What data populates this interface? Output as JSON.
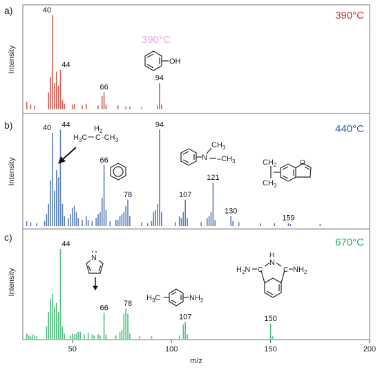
{
  "chart_data": {
    "type": "bar",
    "xlabel": "m/z",
    "xlim": [
      25,
      200
    ],
    "xticks": [
      50,
      100,
      150,
      200
    ],
    "panels": [
      {
        "label": "a)",
        "temperature": "390°C",
        "color": "#c0392b",
        "ylabel": "Intensity",
        "ghost_label": "390°C",
        "peaks": [
          {
            "x": 27,
            "y": 8
          },
          {
            "x": 29,
            "y": 5
          },
          {
            "x": 31,
            "y": 4
          },
          {
            "x": 38,
            "y": 18
          },
          {
            "x": 39,
            "y": 34
          },
          {
            "x": 40,
            "y": 100
          },
          {
            "x": 41,
            "y": 28
          },
          {
            "x": 42,
            "y": 40
          },
          {
            "x": 43,
            "y": 25
          },
          {
            "x": 44,
            "y": 42
          },
          {
            "x": 45,
            "y": 10
          },
          {
            "x": 46,
            "y": 6
          },
          {
            "x": 50,
            "y": 5
          },
          {
            "x": 51,
            "y": 6
          },
          {
            "x": 55,
            "y": 4
          },
          {
            "x": 57,
            "y": 6
          },
          {
            "x": 63,
            "y": 4
          },
          {
            "x": 65,
            "y": 14
          },
          {
            "x": 66,
            "y": 18
          },
          {
            "x": 67,
            "y": 5
          },
          {
            "x": 73,
            "y": 4
          },
          {
            "x": 77,
            "y": 3
          },
          {
            "x": 79,
            "y": 3
          },
          {
            "x": 85,
            "y": 2
          },
          {
            "x": 93,
            "y": 4
          },
          {
            "x": 94,
            "y": 28
          },
          {
            "x": 95,
            "y": 5
          }
        ],
        "labels": [
          {
            "text": "40",
            "x": 40,
            "y": 100
          },
          {
            "text": "44",
            "x": 44,
            "y": 42
          },
          {
            "text": "66",
            "x": 66,
            "y": 18
          },
          {
            "text": "94",
            "x": 94,
            "y": 28
          }
        ],
        "structures": [
          {
            "name": "phenol",
            "label": "OH"
          }
        ]
      },
      {
        "label": "b)",
        "temperature": "440°C",
        "color": "#2e5fa3",
        "ylabel": "Intensity",
        "peaks": [
          {
            "x": 27,
            "y": 5
          },
          {
            "x": 29,
            "y": 4
          },
          {
            "x": 32,
            "y": 3
          },
          {
            "x": 36,
            "y": 5
          },
          {
            "x": 37,
            "y": 12
          },
          {
            "x": 38,
            "y": 22
          },
          {
            "x": 39,
            "y": 45
          },
          {
            "x": 40,
            "y": 92
          },
          {
            "x": 41,
            "y": 35
          },
          {
            "x": 42,
            "y": 55
          },
          {
            "x": 43,
            "y": 48
          },
          {
            "x": 44,
            "y": 95
          },
          {
            "x": 45,
            "y": 22
          },
          {
            "x": 46,
            "y": 10
          },
          {
            "x": 48,
            "y": 8
          },
          {
            "x": 49,
            "y": 12
          },
          {
            "x": 50,
            "y": 18
          },
          {
            "x": 51,
            "y": 20
          },
          {
            "x": 52,
            "y": 14
          },
          {
            "x": 53,
            "y": 8
          },
          {
            "x": 55,
            "y": 6
          },
          {
            "x": 57,
            "y": 10
          },
          {
            "x": 58,
            "y": 6
          },
          {
            "x": 60,
            "y": 5
          },
          {
            "x": 62,
            "y": 8
          },
          {
            "x": 63,
            "y": 12
          },
          {
            "x": 64,
            "y": 14
          },
          {
            "x": 65,
            "y": 28
          },
          {
            "x": 66,
            "y": 60
          },
          {
            "x": 67,
            "y": 16
          },
          {
            "x": 69,
            "y": 5
          },
          {
            "x": 72,
            "y": 6
          },
          {
            "x": 73,
            "y": 6
          },
          {
            "x": 74,
            "y": 10
          },
          {
            "x": 75,
            "y": 12
          },
          {
            "x": 76,
            "y": 14
          },
          {
            "x": 77,
            "y": 20
          },
          {
            "x": 78,
            "y": 26
          },
          {
            "x": 79,
            "y": 10
          },
          {
            "x": 85,
            "y": 4
          },
          {
            "x": 88,
            "y": 3
          },
          {
            "x": 90,
            "y": 5
          },
          {
            "x": 91,
            "y": 14
          },
          {
            "x": 92,
            "y": 16
          },
          {
            "x": 93,
            "y": 22
          },
          {
            "x": 94,
            "y": 95
          },
          {
            "x": 95,
            "y": 14
          },
          {
            "x": 102,
            "y": 4
          },
          {
            "x": 104,
            "y": 10
          },
          {
            "x": 105,
            "y": 8
          },
          {
            "x": 106,
            "y": 14
          },
          {
            "x": 107,
            "y": 26
          },
          {
            "x": 108,
            "y": 8
          },
          {
            "x": 115,
            "y": 4
          },
          {
            "x": 118,
            "y": 8
          },
          {
            "x": 119,
            "y": 10
          },
          {
            "x": 120,
            "y": 14
          },
          {
            "x": 121,
            "y": 43
          },
          {
            "x": 122,
            "y": 6
          },
          {
            "x": 130,
            "y": 10
          },
          {
            "x": 131,
            "y": 5
          },
          {
            "x": 134,
            "y": 4
          },
          {
            "x": 145,
            "y": 3
          },
          {
            "x": 152,
            "y": 3
          },
          {
            "x": 159,
            "y": 3
          },
          {
            "x": 160,
            "y": 2
          },
          {
            "x": 175,
            "y": 2
          }
        ],
        "labels": [
          {
            "text": "40",
            "x": 40,
            "y": 92
          },
          {
            "text": "44",
            "x": 44,
            "y": 95
          },
          {
            "text": "66",
            "x": 66,
            "y": 60
          },
          {
            "text": "78",
            "x": 78,
            "y": 26
          },
          {
            "text": "94",
            "x": 94,
            "y": 95
          },
          {
            "text": "107",
            "x": 107,
            "y": 26
          },
          {
            "text": "121",
            "x": 121,
            "y": 43
          },
          {
            "text": "130",
            "x": 130,
            "y": 10
          },
          {
            "text": "159",
            "x": 159,
            "y": 3
          }
        ],
        "structures": [
          {
            "name": "propyl-radical",
            "label": "H3C–C(H2)·CH3"
          },
          {
            "name": "benzene",
            "label": ""
          },
          {
            "name": "n-n-dimethylaniline",
            "label": "N–CH3"
          },
          {
            "name": "substituted-benzofuran",
            "label": "CH2 / CH3"
          }
        ]
      },
      {
        "label": "c)",
        "temperature": "670°C",
        "color": "#27ae60",
        "ylabel": "Intensity",
        "peaks": [
          {
            "x": 27,
            "y": 6
          },
          {
            "x": 28,
            "y": 4
          },
          {
            "x": 29,
            "y": 3
          },
          {
            "x": 30,
            "y": 5
          },
          {
            "x": 31,
            "y": 4
          },
          {
            "x": 32,
            "y": 3
          },
          {
            "x": 37,
            "y": 14
          },
          {
            "x": 38,
            "y": 30
          },
          {
            "x": 39,
            "y": 45
          },
          {
            "x": 40,
            "y": 50
          },
          {
            "x": 41,
            "y": 36
          },
          {
            "x": 42,
            "y": 40
          },
          {
            "x": 43,
            "y": 30
          },
          {
            "x": 44,
            "y": 100
          },
          {
            "x": 45,
            "y": 14
          },
          {
            "x": 46,
            "y": 6
          },
          {
            "x": 49,
            "y": 4
          },
          {
            "x": 50,
            "y": 6
          },
          {
            "x": 51,
            "y": 5
          },
          {
            "x": 52,
            "y": 6
          },
          {
            "x": 53,
            "y": 8
          },
          {
            "x": 54,
            "y": 8
          },
          {
            "x": 56,
            "y": 5
          },
          {
            "x": 58,
            "y": 7
          },
          {
            "x": 60,
            "y": 5
          },
          {
            "x": 61,
            "y": 4
          },
          {
            "x": 63,
            "y": 5
          },
          {
            "x": 64,
            "y": 4
          },
          {
            "x": 66,
            "y": 29
          },
          {
            "x": 67,
            "y": 5
          },
          {
            "x": 72,
            "y": 4
          },
          {
            "x": 74,
            "y": 8
          },
          {
            "x": 75,
            "y": 10
          },
          {
            "x": 76,
            "y": 28
          },
          {
            "x": 77,
            "y": 34
          },
          {
            "x": 78,
            "y": 28
          },
          {
            "x": 79,
            "y": 6
          },
          {
            "x": 84,
            "y": 3
          },
          {
            "x": 90,
            "y": 3
          },
          {
            "x": 104,
            "y": 4
          },
          {
            "x": 106,
            "y": 16
          },
          {
            "x": 107,
            "y": 19
          },
          {
            "x": 108,
            "y": 5
          },
          {
            "x": 150,
            "y": 17
          },
          {
            "x": 151,
            "y": 3
          }
        ],
        "labels": [
          {
            "text": "44",
            "x": 44,
            "y": 100
          },
          {
            "text": "66",
            "x": 66,
            "y": 29
          },
          {
            "text": "78",
            "x": 78,
            "y": 34
          },
          {
            "text": "107",
            "x": 107,
            "y": 19
          },
          {
            "text": "150",
            "x": 150,
            "y": 17
          }
        ],
        "structures": [
          {
            "name": "pyrrole",
            "label": "N"
          },
          {
            "name": "p-toluidine",
            "label": "H3C / NH2"
          },
          {
            "name": "diamino-isoindoline",
            "label": "H2N / H / N / NH2"
          }
        ]
      }
    ]
  }
}
